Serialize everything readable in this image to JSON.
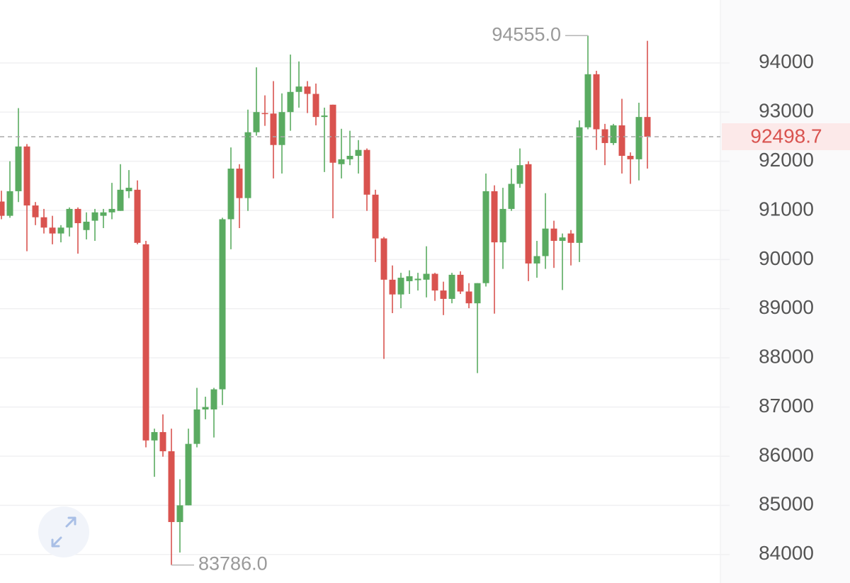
{
  "chart_data": {
    "type": "candlestick",
    "up_color": "#5aab61",
    "down_color": "#d9534f",
    "ylim": [
      83420,
      95280
    ],
    "yticks": [
      84000,
      85000,
      86000,
      87000,
      88000,
      89000,
      90000,
      91000,
      92000,
      93000,
      94000
    ],
    "grid": true,
    "last_price": 92498.7,
    "annotations": [
      {
        "value": 94555,
        "label": "94555.0"
      },
      {
        "value": 83786,
        "label": "83786.0"
      }
    ],
    "open": [
      91180,
      90890,
      91390,
      92300,
      91100,
      90860,
      90650,
      90530,
      90650,
      91030,
      90600,
      90790,
      90890,
      90960,
      90990,
      91390,
      91420,
      90310,
      86320,
      86490,
      86100,
      84660,
      85000,
      86250,
      86950,
      86950,
      87360,
      90820,
      91850,
      91250,
      92590,
      92980,
      92970,
      92330,
      93000,
      93410,
      93520,
      93370,
      92900,
      93150,
      91940,
      92040,
      92110,
      92230,
      91320,
      90430,
      89590,
      89290,
      89560,
      89580,
      89590,
      89710,
      89370,
      89200,
      89690,
      89350,
      89110,
      89520,
      91390,
      90350,
      91030,
      91540,
      91940,
      89920,
      90070,
      90630,
      90380,
      90530,
      90340,
      92690,
      93770,
      92650,
      92370,
      92730,
      92110,
      92040,
      92900
    ],
    "close": [
      90890,
      91390,
      92300,
      91100,
      90860,
      90650,
      90530,
      90650,
      91030,
      90740,
      90770,
      90960,
      90960,
      91030,
      91420,
      91460,
      90340,
      86320,
      86490,
      86100,
      84660,
      85000,
      86250,
      86950,
      87000,
      87360,
      90820,
      91850,
      91250,
      92590,
      93000,
      92970,
      92330,
      93000,
      93410,
      93520,
      93370,
      92900,
      92930,
      91970,
      92040,
      92110,
      92230,
      91320,
      90430,
      89590,
      89290,
      89630,
      89660,
      89610,
      89710,
      89370,
      89200,
      89690,
      89350,
      89110,
      89520,
      91390,
      90350,
      91030,
      91540,
      91920,
      89920,
      90070,
      90630,
      90380,
      90450,
      90340,
      92690,
      93770,
      92650,
      92370,
      92730,
      92110,
      92040,
      92900,
      92498.7
    ],
    "high": [
      91400,
      92000,
      93080,
      92350,
      91170,
      91030,
      90890,
      90700,
      91060,
      91060,
      90960,
      91030,
      91030,
      91560,
      91940,
      91820,
      91610,
      90380,
      86560,
      86850,
      86560,
      85530,
      86560,
      87390,
      87210,
      87390,
      90850,
      92280,
      91940,
      93050,
      93910,
      93340,
      93630,
      93380,
      94170,
      94030,
      93630,
      93580,
      93090,
      93150,
      92660,
      92620,
      92430,
      92260,
      91420,
      90460,
      89880,
      89730,
      89780,
      89730,
      90270,
      89730,
      89550,
      89730,
      89760,
      89520,
      89520,
      91750,
      91510,
      91460,
      91850,
      92260,
      92000,
      90380,
      91350,
      90790,
      90530,
      90600,
      92830,
      94555,
      93840,
      92760,
      92760,
      93270,
      92180,
      93190,
      94450
    ],
    "low": [
      90820,
      90850,
      91170,
      90170,
      90700,
      90530,
      90310,
      90350,
      90470,
      90120,
      90410,
      90380,
      90640,
      90820,
      90990,
      91250,
      90310,
      86180,
      85580,
      85990,
      83786,
      84040,
      85000,
      86180,
      86750,
      86380,
      87040,
      90210,
      90640,
      90990,
      92520,
      92720,
      91650,
      91750,
      92620,
      93090,
      92980,
      92730,
      91780,
      90840,
      91650,
      91920,
      91750,
      90990,
      89950,
      87980,
      88910,
      89010,
      89300,
      89370,
      89230,
      89160,
      88870,
      89110,
      89300,
      89010,
      87690,
      89450,
      88900,
      89810,
      90990,
      91460,
      89560,
      89630,
      89810,
      89830,
      89380,
      89880,
      89950,
      92650,
      92230,
      91920,
      92330,
      91750,
      91540,
      91610,
      91850
    ]
  }
}
